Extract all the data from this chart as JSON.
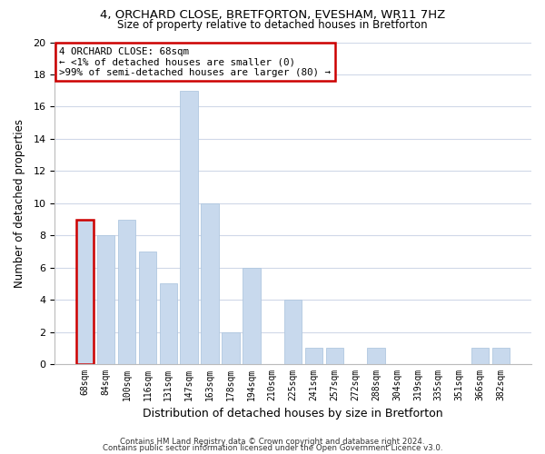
{
  "title": "4, ORCHARD CLOSE, BRETFORTON, EVESHAM, WR11 7HZ",
  "subtitle": "Size of property relative to detached houses in Bretforton",
  "xlabel": "Distribution of detached houses by size in Bretforton",
  "ylabel": "Number of detached properties",
  "bin_labels": [
    "68sqm",
    "84sqm",
    "100sqm",
    "116sqm",
    "131sqm",
    "147sqm",
    "163sqm",
    "178sqm",
    "194sqm",
    "210sqm",
    "225sqm",
    "241sqm",
    "257sqm",
    "272sqm",
    "288sqm",
    "304sqm",
    "319sqm",
    "335sqm",
    "351sqm",
    "366sqm",
    "382sqm"
  ],
  "bar_values": [
    9,
    8,
    9,
    7,
    5,
    17,
    10,
    2,
    6,
    0,
    4,
    1,
    1,
    0,
    1,
    0,
    0,
    0,
    0,
    1,
    1
  ],
  "bar_color": "#c8d9ed",
  "bar_edge_color": "#b0c8e0",
  "highlight_index": 0,
  "highlight_edge_color": "#cc0000",
  "annotation_box_edge_color": "#cc0000",
  "annotation_title": "4 ORCHARD CLOSE: 68sqm",
  "annotation_line1": "← <1% of detached houses are smaller (0)",
  "annotation_line2": ">99% of semi-detached houses are larger (80) →",
  "ylim": [
    0,
    20
  ],
  "yticks": [
    0,
    2,
    4,
    6,
    8,
    10,
    12,
    14,
    16,
    18,
    20
  ],
  "footer1": "Contains HM Land Registry data © Crown copyright and database right 2024.",
  "footer2": "Contains public sector information licensed under the Open Government Licence v3.0.",
  "background_color": "#ffffff",
  "grid_color": "#d0d8e8"
}
